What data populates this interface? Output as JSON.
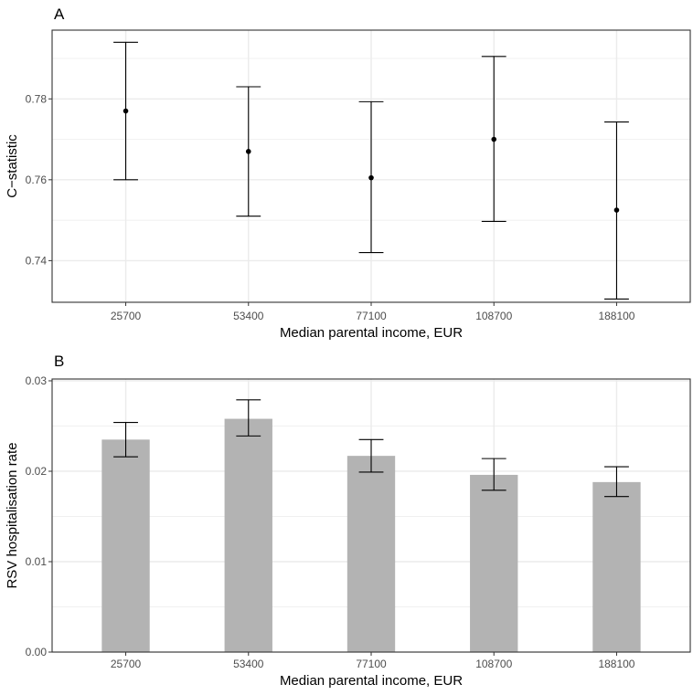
{
  "chart_data": [
    {
      "panel_label": "A",
      "type": "scatter",
      "subtype": "point-with-errorbars",
      "categories": [
        "25700",
        "53400",
        "77100",
        "108700",
        "188100"
      ],
      "values": [
        0.777,
        0.767,
        0.7605,
        0.77,
        0.7525
      ],
      "lower": [
        0.76,
        0.751,
        0.742,
        0.7497,
        0.7305
      ],
      "upper": [
        0.794,
        0.783,
        0.7793,
        0.7905,
        0.7743
      ],
      "xlabel": "Median parental income, EUR",
      "ylabel": "C−statistic",
      "ylim": [
        0.7297,
        0.797
      ],
      "yticks": [
        0.74,
        0.76,
        0.78
      ],
      "ytick_labels": [
        "0.74",
        "0.76",
        "0.78"
      ],
      "grid": true,
      "colors": {
        "mark": "#000000",
        "grid": "#ebebeb",
        "border": "#333333"
      }
    },
    {
      "panel_label": "B",
      "type": "bar",
      "categories": [
        "25700",
        "53400",
        "77100",
        "108700",
        "188100"
      ],
      "values": [
        0.0235,
        0.0258,
        0.0217,
        0.0196,
        0.0188
      ],
      "lower": [
        0.0216,
        0.0239,
        0.0199,
        0.0179,
        0.0172
      ],
      "upper": [
        0.0254,
        0.0279,
        0.0235,
        0.0214,
        0.0205
      ],
      "xlabel": "Median parental income, EUR",
      "ylabel": "RSV hospitalisation rate",
      "ylim": [
        0,
        0.0302
      ],
      "yticks": [
        0.0,
        0.01,
        0.02,
        0.03
      ],
      "ytick_labels": [
        "0.00",
        "0.01",
        "0.02",
        "0.03"
      ],
      "grid": true,
      "colors": {
        "bar": "#b3b3b3",
        "mark": "#000000",
        "grid": "#ebebeb",
        "border": "#333333"
      }
    }
  ]
}
